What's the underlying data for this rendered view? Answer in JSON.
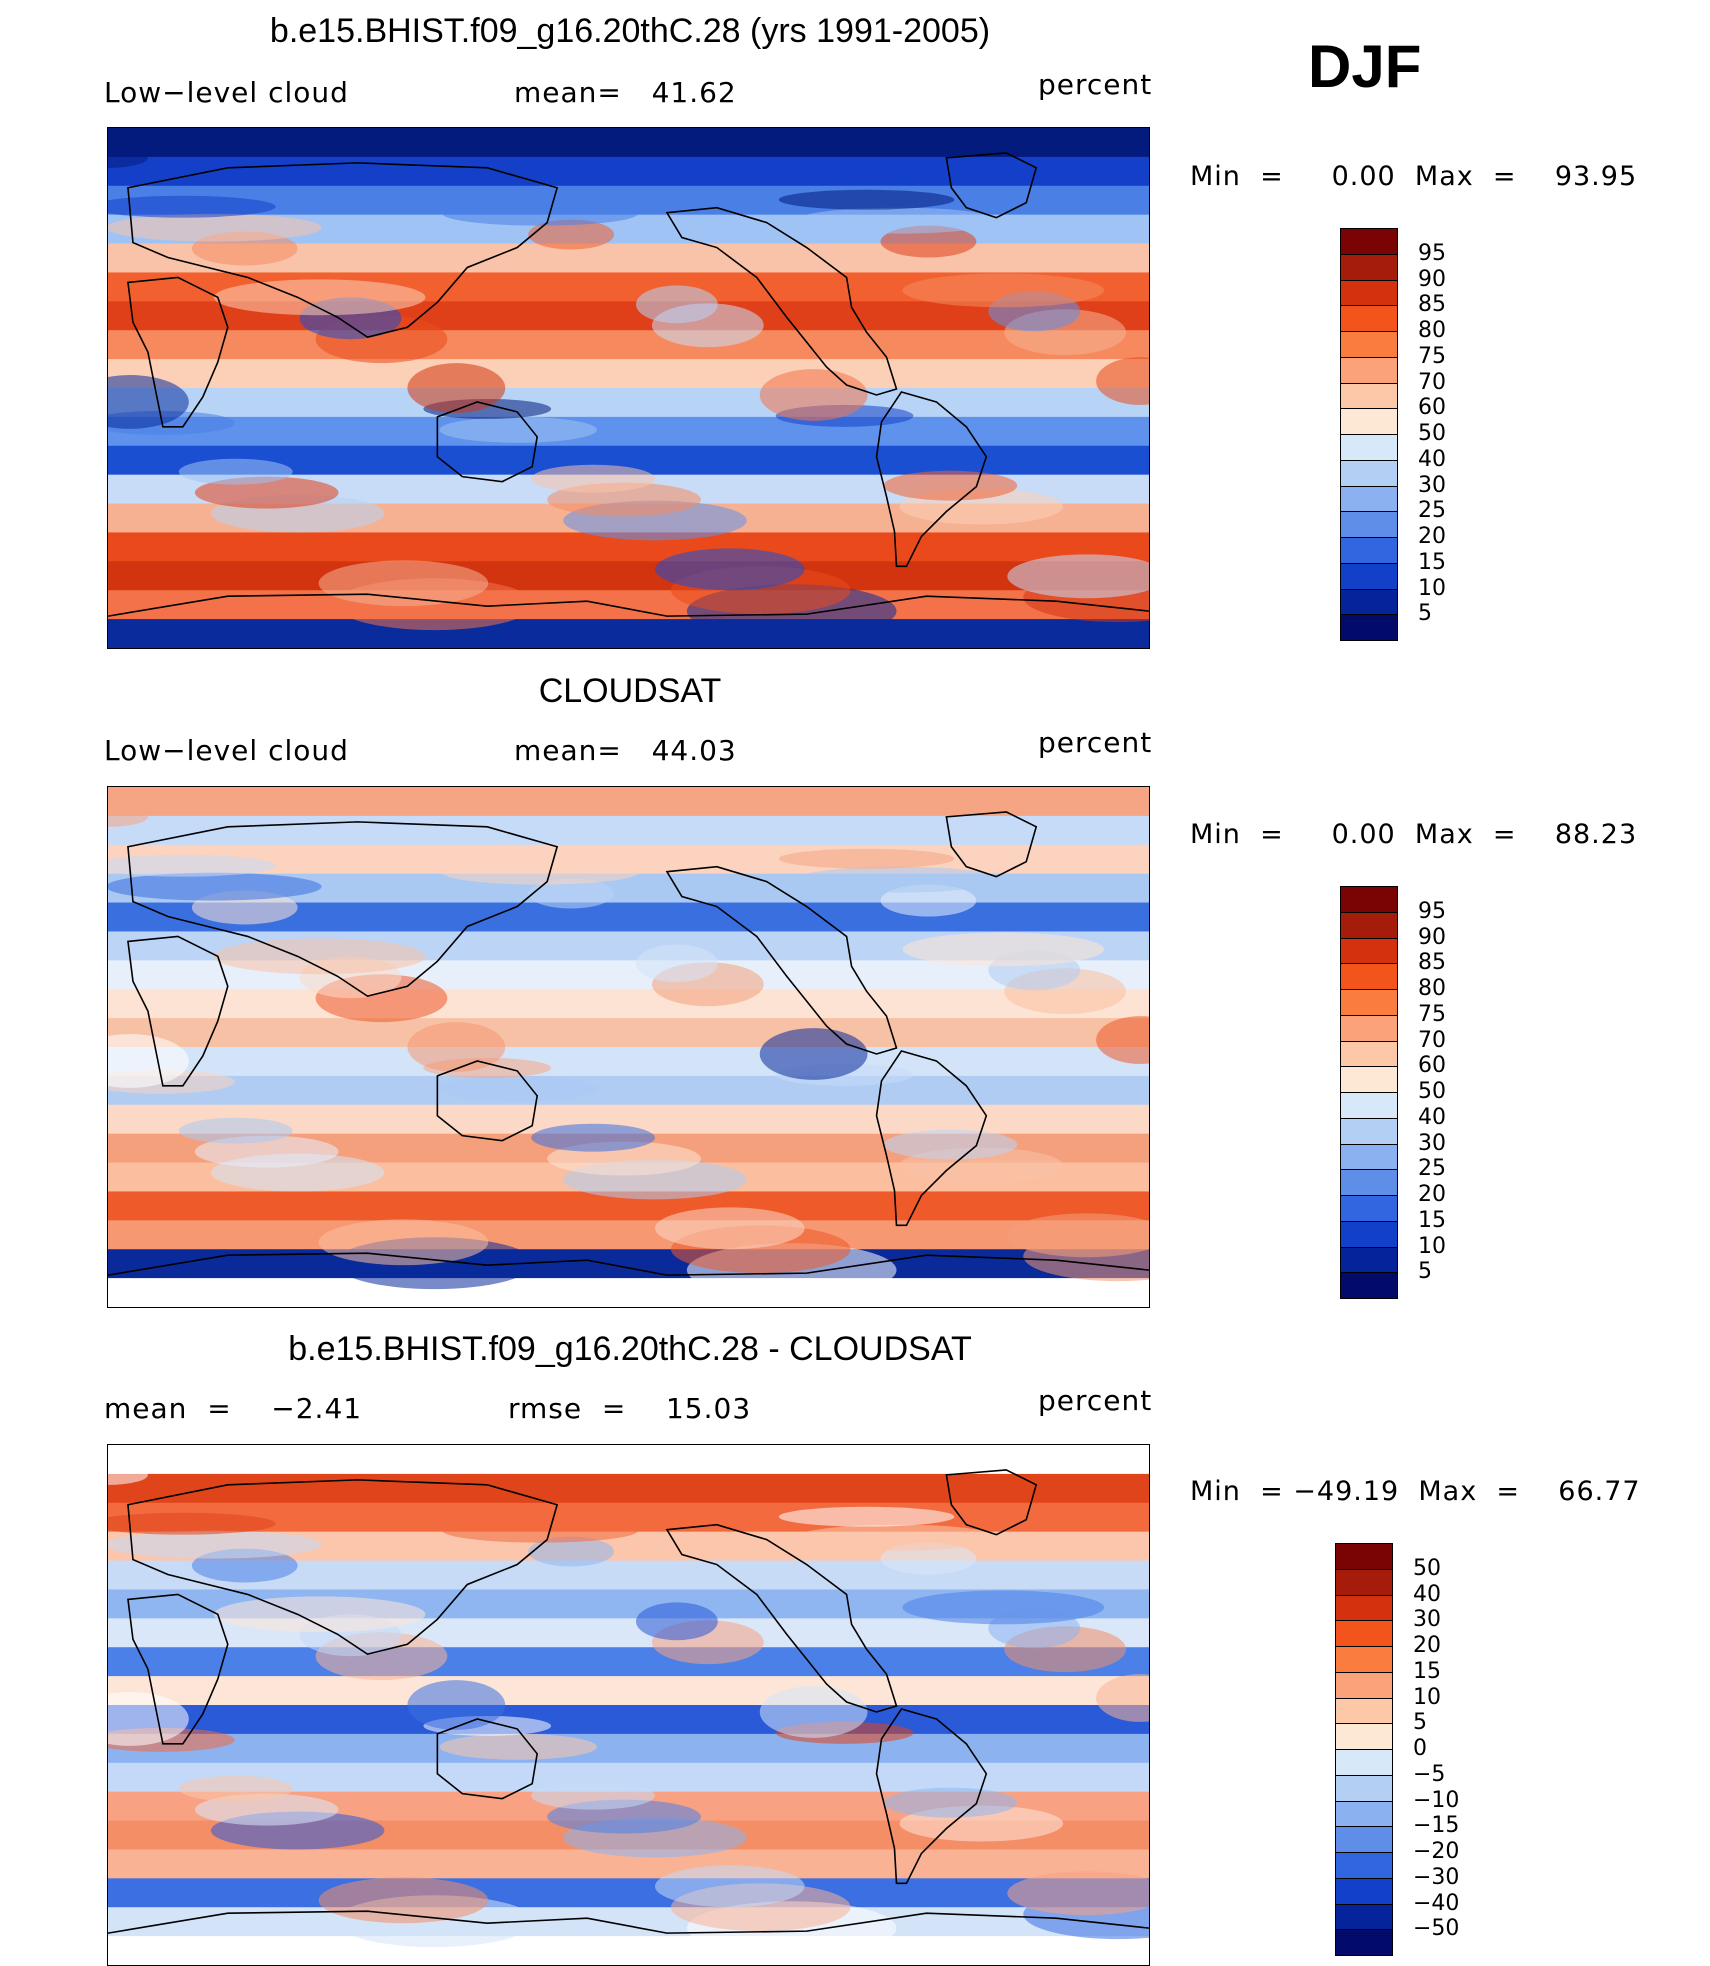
{
  "season": "DJF",
  "panels": [
    {
      "title": "b.e15.BHIST.f09_g16.20thC.28 (yrs 1991-2005)",
      "left_label": "Low−level cloud",
      "mid_label": "mean=   41.62",
      "units": "percent",
      "minmax": "Min  =     0.00  Max  =    93.95",
      "colorbar_labels": [
        "95",
        "90",
        "85",
        "80",
        "75",
        "70",
        "60",
        "50",
        "40",
        "30",
        "25",
        "20",
        "15",
        "10",
        "5"
      ],
      "colorbar_colors": [
        "#7a0403",
        "#a51c0a",
        "#d4320f",
        "#f2541b",
        "#fa7c3e",
        "#fca27b",
        "#fdc8a8",
        "#fde8d6",
        "#d7e8f8",
        "#b4cff4",
        "#8cb1f0",
        "#5f8ee8",
        "#3266e0",
        "#1240c8",
        "#05239a",
        "#020a6a"
      ],
      "bands": [
        "#041b7e",
        "#1440c9",
        "#4a7fe6",
        "#9ec3f4",
        "#f9c3aa",
        "#f26030",
        "#e04019",
        "#f68a5e",
        "#fbd0b6",
        "#b7d4f6",
        "#5e92ec",
        "#1a4fd2",
        "#c9dcf7",
        "#f6b193",
        "#ea4a1b",
        "#d23410",
        "#f4724a",
        "#0a2b9c"
      ]
    },
    {
      "title": "CLOUDSAT",
      "left_label": "Low−level cloud",
      "mid_label": "mean=   44.03",
      "units": "percent",
      "minmax": "Min  =     0.00  Max  =    88.23",
      "colorbar_labels": [
        "95",
        "90",
        "85",
        "80",
        "75",
        "70",
        "60",
        "50",
        "40",
        "30",
        "25",
        "20",
        "15",
        "10",
        "5"
      ],
      "colorbar_colors": [
        "#7a0403",
        "#a51c0a",
        "#d4320f",
        "#f2541b",
        "#fa7c3e",
        "#fca27b",
        "#fdc8a8",
        "#fde8d6",
        "#d7e8f8",
        "#b4cff4",
        "#8cb1f0",
        "#5f8ee8",
        "#3266e0",
        "#1240c8",
        "#05239a",
        "#020a6a"
      ],
      "bands": [
        "#f6a584",
        "#c6dbf7",
        "#fbd3bf",
        "#a9c8f2",
        "#3a6fe0",
        "#bcd4f6",
        "#e7effb",
        "#fde3d3",
        "#f7c1a6",
        "#d4e4f8",
        "#b0ccf3",
        "#fcd9c6",
        "#f4a07c",
        "#fbbfa0",
        "#ee5a2a",
        "#f69872",
        "#0a2a9a",
        "#ffffff"
      ]
    },
    {
      "title": "b.e15.BHIST.f09_g16.20thC.28 - CLOUDSAT",
      "left_label": "mean  =    −2.41",
      "mid_label": "rmse  =    15.03",
      "units": "percent",
      "minmax": "Min  = −49.19  Max  =    66.77",
      "colorbar_labels": [
        "50",
        "40",
        "30",
        "20",
        "15",
        "10",
        "5",
        "0",
        "−5",
        "−10",
        "−15",
        "−20",
        "−30",
        "−40",
        "−50"
      ],
      "colorbar_colors": [
        "#7a0403",
        "#a51c0a",
        "#d4320f",
        "#f2541b",
        "#fa7c3e",
        "#fca27b",
        "#fdc8a8",
        "#fde8d6",
        "#d7e8f8",
        "#b4cff4",
        "#8cb1f0",
        "#5f8ee8",
        "#3266e0",
        "#1240c8",
        "#05239a",
        "#020a6a"
      ],
      "bands": [
        "#ffffff",
        "#e0441a",
        "#f26a3e",
        "#fbc6ab",
        "#c7dbf7",
        "#8fb6f1",
        "#d9e7f9",
        "#4a80e8",
        "#fde6d8",
        "#2a5ad8",
        "#8cb2f0",
        "#c4d9f7",
        "#f8a283",
        "#f48e66",
        "#f9b294",
        "#3b6fe2",
        "#d3e3f8",
        "#ffffff"
      ]
    }
  ]
}
